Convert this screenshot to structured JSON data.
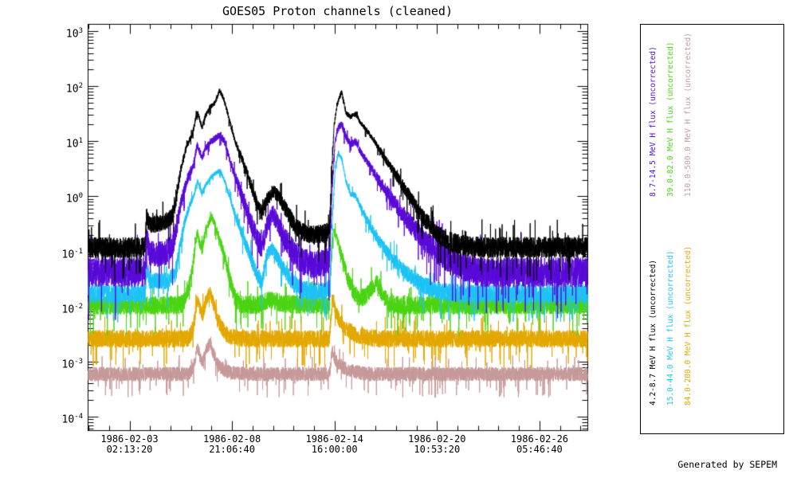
{
  "chart": {
    "title": "GOES05 Proton channels (cleaned)",
    "footer_watermark": "Generated by SEPEM",
    "chart_data": {
      "type": "line",
      "x_axis": {
        "unit": "date/time",
        "tick_labels": [
          {
            "date": "1986-02-03",
            "time": "02:13:20"
          },
          {
            "date": "1986-02-08",
            "time": "21:06:40"
          },
          {
            "date": "1986-02-14",
            "time": "16:00:00"
          },
          {
            "date": "1986-02-20",
            "time": "10:53:20"
          },
          {
            "date": "1986-02-26",
            "time": "05:46:40"
          }
        ],
        "range_days": [
          0,
          28.19
        ],
        "minor_ticks_per_major_interval": 4
      },
      "y_axis": {
        "scale": "log10",
        "tick_exponents": [
          3,
          2,
          1,
          0,
          -1,
          -2,
          -3,
          -4
        ],
        "range_log10": [
          -4.26,
          3.12
        ]
      },
      "points_format": "[t_days_from_plot_left, log10_flux_envelope_center]",
      "series": [
        {
          "name": "4.2-8.7 MeV H flux (uncorrected)",
          "color": "#000000",
          "baseline_log10": -0.92,
          "noise_log10": 0.19,
          "points": [
            [
              0,
              -0.92
            ],
            [
              3.22,
              -0.92
            ],
            [
              3.3,
              -0.34
            ],
            [
              3.45,
              -0.52
            ],
            [
              4.2,
              -0.48
            ],
            [
              4.7,
              -0.38
            ],
            [
              4.95,
              -0.12
            ],
            [
              5.2,
              0.45
            ],
            [
              5.55,
              0.9
            ],
            [
              5.9,
              1.15
            ],
            [
              6.16,
              1.55
            ],
            [
              6.43,
              1.25
            ],
            [
              6.6,
              1.45
            ],
            [
              6.9,
              1.63
            ],
            [
              7.15,
              1.7
            ],
            [
              7.42,
              1.93
            ],
            [
              7.65,
              1.78
            ],
            [
              7.95,
              1.42
            ],
            [
              8.25,
              1.05
            ],
            [
              8.6,
              0.75
            ],
            [
              9.0,
              0.4
            ],
            [
              9.4,
              0.0
            ],
            [
              9.8,
              -0.3
            ],
            [
              10.1,
              -0.05
            ],
            [
              10.45,
              0.1
            ],
            [
              10.75,
              0.0
            ],
            [
              11.1,
              -0.2
            ],
            [
              11.6,
              -0.5
            ],
            [
              12.1,
              -0.65
            ],
            [
              12.7,
              -0.7
            ],
            [
              13.3,
              -0.67
            ],
            [
              13.62,
              -0.62
            ],
            [
              13.73,
              0.3
            ],
            [
              13.88,
              1.3
            ],
            [
              14.05,
              1.68
            ],
            [
              14.3,
              1.9
            ],
            [
              14.55,
              1.52
            ],
            [
              14.8,
              1.45
            ],
            [
              15.1,
              1.5
            ],
            [
              15.4,
              1.33
            ],
            [
              15.85,
              1.15
            ],
            [
              16.35,
              0.9
            ],
            [
              16.9,
              0.62
            ],
            [
              17.6,
              0.28
            ],
            [
              18.3,
              -0.08
            ],
            [
              19.0,
              -0.42
            ],
            [
              19.7,
              -0.67
            ],
            [
              20.5,
              -0.83
            ],
            [
              21.4,
              -0.9
            ],
            [
              22.2,
              -0.92
            ],
            [
              28.19,
              -0.92
            ]
          ]
        },
        {
          "name": "8.7-14.5 MeV H flux (uncorrected)",
          "color": "#5a0bd8",
          "baseline_log10": -1.37,
          "noise_log10": 0.27,
          "points": [
            [
              0,
              -1.37
            ],
            [
              3.22,
              -1.37
            ],
            [
              3.3,
              -0.66
            ],
            [
              3.45,
              -1.02
            ],
            [
              4.2,
              -1.05
            ],
            [
              4.75,
              -0.92
            ],
            [
              5.0,
              -0.55
            ],
            [
              5.3,
              -0.05
            ],
            [
              5.6,
              0.32
            ],
            [
              5.95,
              0.58
            ],
            [
              6.16,
              0.95
            ],
            [
              6.43,
              0.7
            ],
            [
              6.6,
              0.85
            ],
            [
              6.9,
              1.0
            ],
            [
              7.2,
              1.06
            ],
            [
              7.45,
              1.13
            ],
            [
              7.7,
              1.0
            ],
            [
              7.98,
              0.68
            ],
            [
              8.28,
              0.38
            ],
            [
              8.6,
              0.1
            ],
            [
              9.0,
              -0.3
            ],
            [
              9.4,
              -0.65
            ],
            [
              9.8,
              -0.95
            ],
            [
              10.1,
              -0.52
            ],
            [
              10.4,
              -0.3
            ],
            [
              10.75,
              -0.5
            ],
            [
              11.1,
              -0.75
            ],
            [
              11.6,
              -1.02
            ],
            [
              12.1,
              -1.18
            ],
            [
              12.7,
              -1.25
            ],
            [
              13.3,
              -1.2
            ],
            [
              13.62,
              -1.12
            ],
            [
              13.76,
              0.05
            ],
            [
              13.92,
              0.95
            ],
            [
              14.08,
              1.22
            ],
            [
              14.3,
              1.33
            ],
            [
              14.55,
              1.08
            ],
            [
              14.8,
              0.95
            ],
            [
              15.1,
              1.0
            ],
            [
              15.4,
              0.8
            ],
            [
              15.85,
              0.58
            ],
            [
              16.35,
              0.32
            ],
            [
              16.9,
              0.07
            ],
            [
              17.6,
              -0.25
            ],
            [
              18.3,
              -0.55
            ],
            [
              19.0,
              -0.8
            ],
            [
              19.7,
              -1.0
            ],
            [
              20.5,
              -1.18
            ],
            [
              21.4,
              -1.3
            ],
            [
              22.2,
              -1.37
            ],
            [
              28.19,
              -1.37
            ]
          ]
        },
        {
          "name": "15.0-44.0 MeV H flux (uncorrected)",
          "color": "#1fc3f5",
          "baseline_log10": -1.76,
          "noise_log10": 0.17,
          "points": [
            [
              0,
              -1.76
            ],
            [
              3.22,
              -1.76
            ],
            [
              3.3,
              -1.28
            ],
            [
              3.45,
              -1.52
            ],
            [
              4.3,
              -1.55
            ],
            [
              4.9,
              -1.42
            ],
            [
              5.15,
              -0.95
            ],
            [
              5.45,
              -0.45
            ],
            [
              5.75,
              -0.15
            ],
            [
              6.0,
              0.05
            ],
            [
              6.16,
              0.3
            ],
            [
              6.43,
              0.05
            ],
            [
              6.62,
              0.2
            ],
            [
              6.92,
              0.35
            ],
            [
              7.2,
              0.43
            ],
            [
              7.45,
              0.47
            ],
            [
              7.72,
              0.28
            ],
            [
              8.0,
              -0.02
            ],
            [
              8.3,
              -0.32
            ],
            [
              8.62,
              -0.62
            ],
            [
              9.0,
              -0.95
            ],
            [
              9.4,
              -1.3
            ],
            [
              9.8,
              -1.58
            ],
            [
              10.1,
              -1.05
            ],
            [
              10.38,
              -0.95
            ],
            [
              10.75,
              -1.15
            ],
            [
              11.1,
              -1.35
            ],
            [
              11.6,
              -1.58
            ],
            [
              12.1,
              -1.68
            ],
            [
              12.7,
              -1.73
            ],
            [
              13.3,
              -1.7
            ],
            [
              13.65,
              -1.66
            ],
            [
              13.8,
              -0.35
            ],
            [
              13.95,
              0.55
            ],
            [
              14.12,
              0.8
            ],
            [
              14.32,
              0.68
            ],
            [
              14.55,
              0.28
            ],
            [
              14.8,
              0.05
            ],
            [
              15.1,
              0.02
            ],
            [
              15.4,
              -0.2
            ],
            [
              15.85,
              -0.5
            ],
            [
              16.35,
              -0.78
            ],
            [
              16.9,
              -1.02
            ],
            [
              17.6,
              -1.28
            ],
            [
              18.3,
              -1.48
            ],
            [
              19.0,
              -1.62
            ],
            [
              19.7,
              -1.7
            ],
            [
              20.5,
              -1.75
            ],
            [
              21.2,
              -1.76
            ],
            [
              28.19,
              -1.76
            ]
          ]
        },
        {
          "name": "39.0-82.0 MeV H flux (uncorrected)",
          "color": "#4cd415",
          "baseline_log10": -1.97,
          "noise_log10": 0.17,
          "points": [
            [
              0,
              -1.97
            ],
            [
              5.3,
              -1.97
            ],
            [
              5.6,
              -1.78
            ],
            [
              5.9,
              -1.32
            ],
            [
              6.05,
              -0.85
            ],
            [
              6.16,
              -0.65
            ],
            [
              6.3,
              -0.85
            ],
            [
              6.45,
              -0.95
            ],
            [
              6.62,
              -0.6
            ],
            [
              6.97,
              -0.36
            ],
            [
              7.15,
              -0.5
            ],
            [
              7.42,
              -0.78
            ],
            [
              7.72,
              -1.1
            ],
            [
              8.0,
              -1.5
            ],
            [
              8.3,
              -1.85
            ],
            [
              8.6,
              -1.95
            ],
            [
              9.5,
              -1.97
            ],
            [
              10.15,
              -1.88
            ],
            [
              10.6,
              -1.9
            ],
            [
              11.1,
              -1.95
            ],
            [
              13.62,
              -1.97
            ],
            [
              13.7,
              -1.25
            ],
            [
              13.85,
              -0.58
            ],
            [
              14.02,
              -0.75
            ],
            [
              14.3,
              -1.05
            ],
            [
              14.62,
              -1.45
            ],
            [
              14.95,
              -1.72
            ],
            [
              15.3,
              -1.86
            ],
            [
              15.7,
              -1.8
            ],
            [
              16.05,
              -1.63
            ],
            [
              16.3,
              -1.56
            ],
            [
              16.58,
              -1.78
            ],
            [
              16.95,
              -1.93
            ],
            [
              17.4,
              -1.97
            ],
            [
              28.19,
              -1.97
            ]
          ]
        },
        {
          "name": "84.0-200.0 MeV H flux (uncorrected)",
          "color": "#e3a800",
          "baseline_log10": -2.58,
          "noise_log10": 0.16,
          "points": [
            [
              0,
              -2.58
            ],
            [
              5.65,
              -2.58
            ],
            [
              5.95,
              -2.38
            ],
            [
              6.16,
              -1.85
            ],
            [
              6.35,
              -2.07
            ],
            [
              6.47,
              -2.14
            ],
            [
              6.62,
              -1.92
            ],
            [
              6.88,
              -1.74
            ],
            [
              7.1,
              -1.98
            ],
            [
              7.35,
              -2.26
            ],
            [
              7.7,
              -2.46
            ],
            [
              8.1,
              -2.55
            ],
            [
              9.0,
              -2.58
            ],
            [
              13.62,
              -2.58
            ],
            [
              13.7,
              -2.2
            ],
            [
              13.78,
              -1.87
            ],
            [
              13.95,
              -2.06
            ],
            [
              14.2,
              -2.26
            ],
            [
              14.55,
              -2.4
            ],
            [
              15.1,
              -2.5
            ],
            [
              15.7,
              -2.55
            ],
            [
              16.4,
              -2.58
            ],
            [
              28.19,
              -2.58
            ]
          ]
        },
        {
          "name": "110.0-500.0 MeV H flux (uncorrected)",
          "color": "#c79a9a",
          "baseline_log10": -3.22,
          "noise_log10": 0.13,
          "points": [
            [
              0,
              -3.22
            ],
            [
              5.65,
              -3.22
            ],
            [
              5.95,
              -3.1
            ],
            [
              6.16,
              -2.72
            ],
            [
              6.35,
              -2.95
            ],
            [
              6.47,
              -3.0
            ],
            [
              6.62,
              -2.82
            ],
            [
              6.88,
              -2.65
            ],
            [
              7.1,
              -2.88
            ],
            [
              7.35,
              -3.06
            ],
            [
              7.7,
              -3.15
            ],
            [
              8.1,
              -3.2
            ],
            [
              9.0,
              -3.22
            ],
            [
              13.62,
              -3.22
            ],
            [
              13.7,
              -3.0
            ],
            [
              13.78,
              -2.78
            ],
            [
              13.95,
              -2.96
            ],
            [
              14.2,
              -3.06
            ],
            [
              14.55,
              -3.13
            ],
            [
              15.1,
              -3.18
            ],
            [
              15.7,
              -3.22
            ],
            [
              28.19,
              -3.22
            ]
          ]
        }
      ]
    },
    "legend": {
      "column_series_indices": [
        [
          1,
          3,
          5
        ],
        [
          0,
          2,
          4
        ]
      ]
    }
  }
}
